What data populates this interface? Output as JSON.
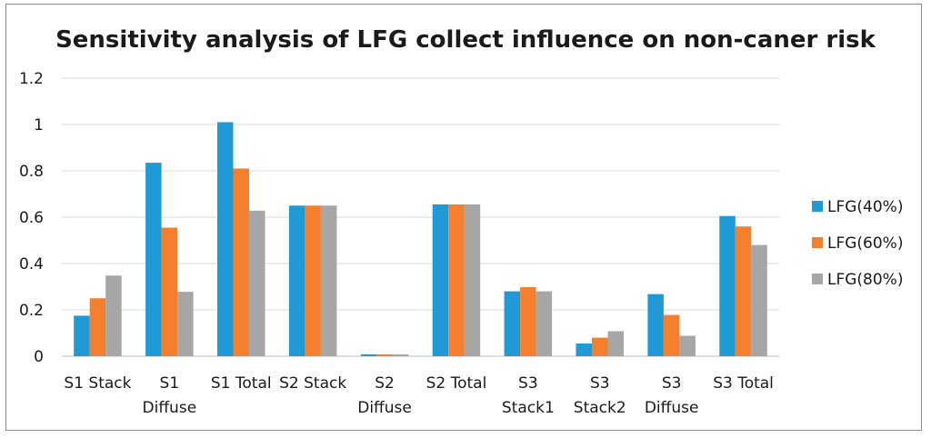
{
  "chart_data": {
    "type": "bar",
    "title": "Sensitivity analysis of LFG collect influence on non-caner risk",
    "xlabel": "",
    "ylabel": "",
    "ylim": [
      0,
      1.2
    ],
    "yticks": [
      "0",
      "0.2",
      "0.4",
      "0.6",
      "0.8",
      "1",
      "1.2"
    ],
    "ytick_values": [
      0,
      0.2,
      0.4,
      0.6,
      0.8,
      1.0,
      1.2
    ],
    "grid": true,
    "legend_position": "right",
    "categories": [
      [
        "S1 Stack"
      ],
      [
        "S1",
        "Diffuse"
      ],
      [
        "S1 Total"
      ],
      [
        "S2 Stack"
      ],
      [
        "S2",
        "Diffuse"
      ],
      [
        "S2 Total"
      ],
      [
        "S3",
        "Stack1"
      ],
      [
        "S3",
        "Stack2"
      ],
      [
        "S3",
        "Diffuse"
      ],
      [
        "S3 Total"
      ]
    ],
    "series": [
      {
        "name": "LFG(40%)",
        "color": "#1f9ad6",
        "values": [
          0.175,
          0.835,
          1.01,
          0.65,
          0.008,
          0.655,
          0.28,
          0.055,
          0.268,
          0.605
        ]
      },
      {
        "name": "LFG(60%)",
        "color": "#f47f2c",
        "values": [
          0.25,
          0.555,
          0.81,
          0.65,
          0.008,
          0.655,
          0.298,
          0.08,
          0.178,
          0.56
        ]
      },
      {
        "name": "LFG(80%)",
        "color": "#a6a6a6",
        "values": [
          0.348,
          0.278,
          0.628,
          0.65,
          0.008,
          0.655,
          0.28,
          0.108,
          0.088,
          0.48
        ]
      }
    ]
  }
}
